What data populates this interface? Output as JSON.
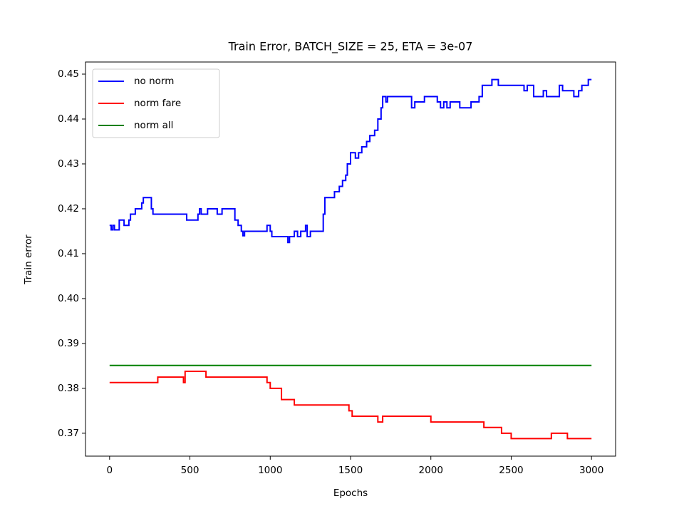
{
  "chart_data": {
    "type": "line",
    "title": "Train Error, BATCH_SIZE = 25, ETA = 3e-07",
    "xlabel": "Epochs",
    "ylabel": "Train error",
    "xlim": [
      -150,
      3150
    ],
    "ylim": [
      0.3649,
      0.4527
    ],
    "xticks": [
      0,
      500,
      1000,
      1500,
      2000,
      2500,
      3000
    ],
    "yticks": [
      0.37,
      0.38,
      0.39,
      {
        "value": 0.4,
        "label": "0.40"
      },
      0.41,
      0.42,
      0.43,
      0.44,
      0.45
    ],
    "legend": "upper left",
    "grid": false,
    "series": [
      {
        "name": "no norm",
        "color": "#0000ff",
        "x": [
          0,
          10,
          20,
          30,
          50,
          60,
          80,
          90,
          120,
          130,
          160,
          200,
          210,
          250,
          260,
          270,
          480,
          540,
          550,
          560,
          570,
          610,
          660,
          670,
          700,
          770,
          780,
          800,
          820,
          830,
          840,
          980,
          1000,
          1010,
          1110,
          1120,
          1150,
          1170,
          1190,
          1220,
          1230,
          1250,
          1330,
          1340,
          1400,
          1430,
          1450,
          1470,
          1480,
          1500,
          1530,
          1550,
          1570,
          1600,
          1620,
          1650,
          1670,
          1690,
          1700,
          1720,
          1730,
          1880,
          1900,
          1960,
          2040,
          2060,
          2080,
          2100,
          2120,
          2180,
          2250,
          2300,
          2320,
          2380,
          2420,
          2580,
          2600,
          2640,
          2700,
          2720,
          2800,
          2820,
          2890,
          2920,
          2940,
          2980,
          3000
        ],
        "values": [
          0.4163,
          0.4153,
          0.4163,
          0.4153,
          0.4153,
          0.4175,
          0.4175,
          0.4163,
          0.4175,
          0.4188,
          0.42,
          0.4213,
          0.4225,
          0.4225,
          0.42,
          0.4188,
          0.4175,
          0.4175,
          0.4188,
          0.42,
          0.4188,
          0.42,
          0.42,
          0.4188,
          0.42,
          0.42,
          0.4175,
          0.4163,
          0.415,
          0.414,
          0.415,
          0.4163,
          0.415,
          0.4138,
          0.4125,
          0.4138,
          0.415,
          0.4138,
          0.415,
          0.4163,
          0.4138,
          0.415,
          0.4188,
          0.4225,
          0.4238,
          0.425,
          0.4263,
          0.4275,
          0.43,
          0.4325,
          0.4313,
          0.4325,
          0.4338,
          0.435,
          0.4363,
          0.4375,
          0.44,
          0.4425,
          0.445,
          0.4438,
          0.445,
          0.4425,
          0.4438,
          0.445,
          0.4438,
          0.4425,
          0.4438,
          0.4425,
          0.4438,
          0.4425,
          0.4438,
          0.445,
          0.4475,
          0.4488,
          0.4475,
          0.4463,
          0.4475,
          0.445,
          0.4463,
          0.445,
          0.4475,
          0.4463,
          0.445,
          0.4463,
          0.4475,
          0.4488,
          0.4488
        ]
      },
      {
        "name": "norm fare",
        "color": "#ff0000",
        "x": [
          0,
          300,
          460,
          470,
          600,
          980,
          1000,
          1070,
          1150,
          1490,
          1510,
          1670,
          1700,
          2000,
          2330,
          2440,
          2500,
          2750,
          2850,
          3000
        ],
        "values": [
          0.3813,
          0.3825,
          0.3813,
          0.3838,
          0.3825,
          0.3813,
          0.38,
          0.3775,
          0.3763,
          0.375,
          0.3738,
          0.3725,
          0.3738,
          0.3725,
          0.3713,
          0.37,
          0.3688,
          0.37,
          0.3688,
          0.3688
        ]
      },
      {
        "name": "norm all",
        "color": "#008000",
        "x": [
          0,
          3000
        ],
        "values": [
          0.3851,
          0.3851
        ]
      }
    ]
  }
}
